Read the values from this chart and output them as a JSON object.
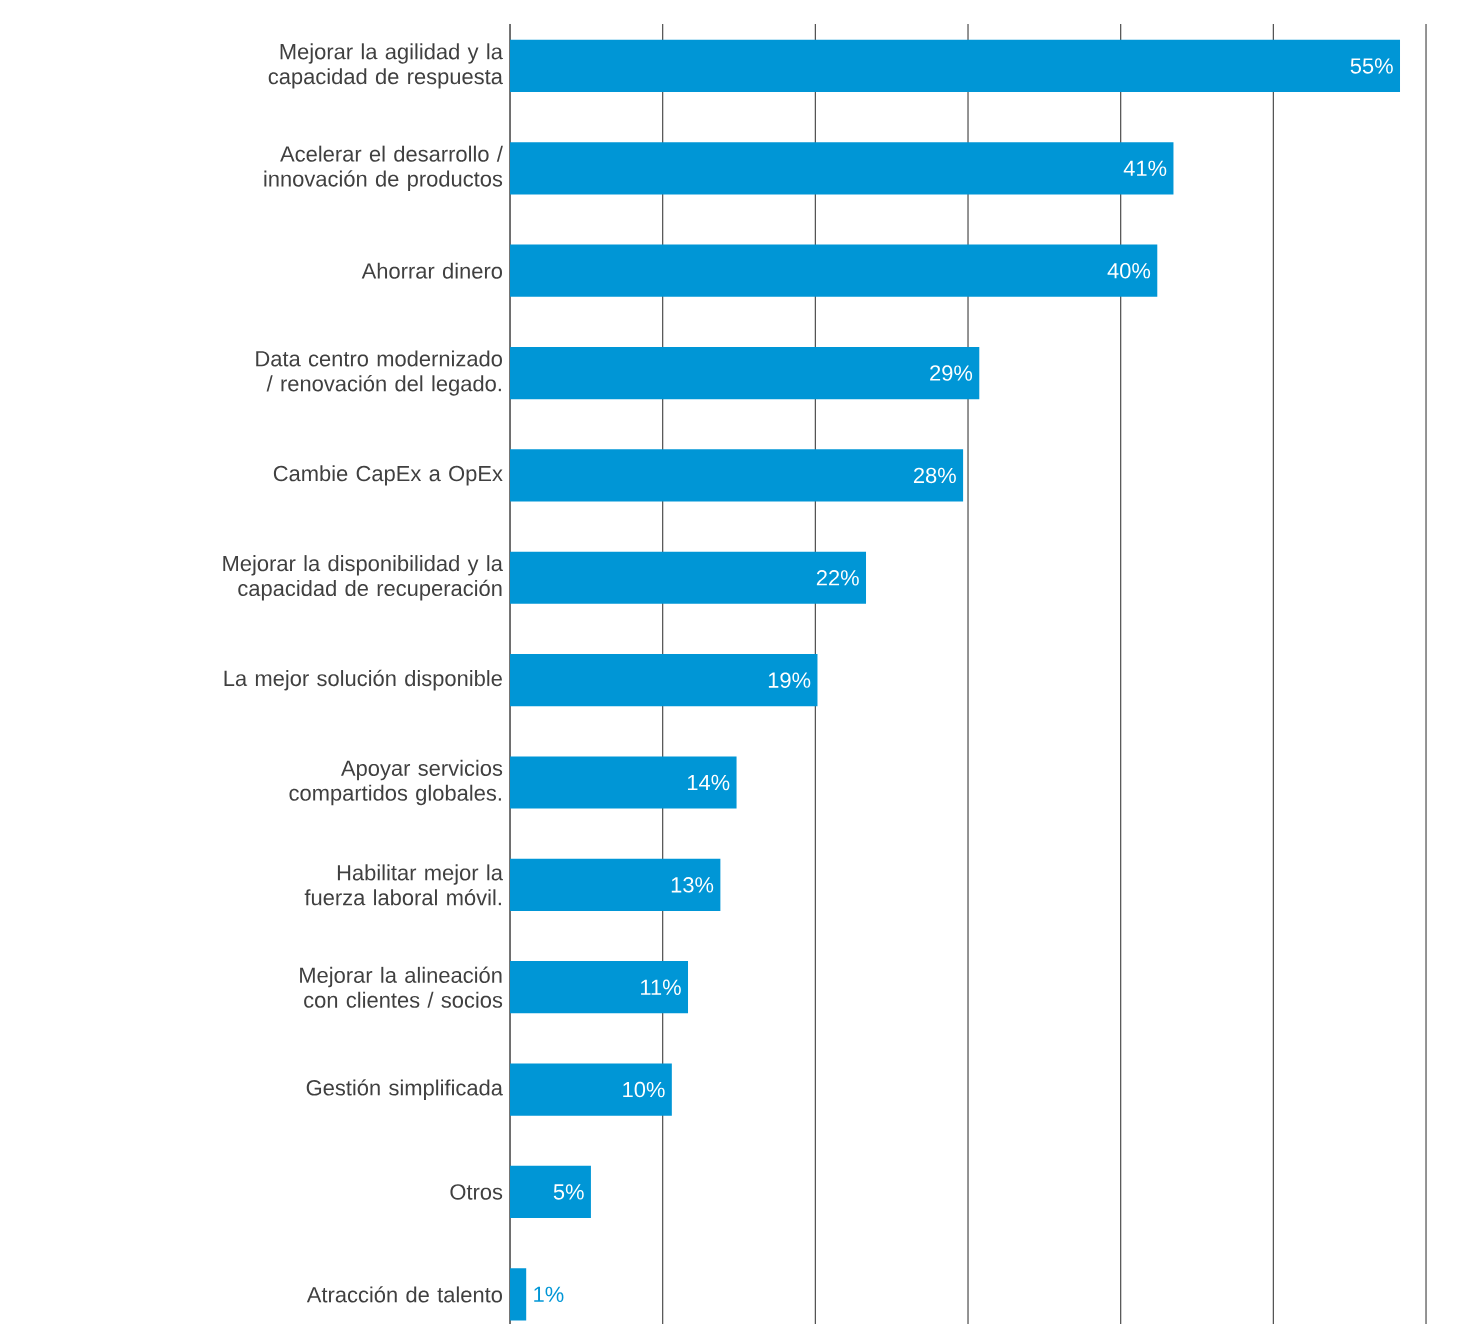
{
  "chart_data": {
    "type": "bar",
    "orientation": "horizontal",
    "categories": [
      "Mejorar la agilidad y la capacidad de respuesta",
      "Acelerar el desarrollo / innovación de productos",
      "Ahorrar dinero",
      "Data centro modernizado / renovación del legado.",
      "Cambie CapEx a OpEx",
      "Mejorar la disponibilidad y la capacidad de recuperación",
      "La mejor solución disponible",
      "Apoyar servicios compartidos globales.",
      "Habilitar mejor la fuerza laboral móvil.",
      "Mejorar la alineación con clientes / socios",
      "Gestión simplificada",
      "Otros",
      "Atracción de talento"
    ],
    "values": [
      55,
      41,
      40,
      29,
      28,
      22,
      19,
      14,
      13,
      11,
      10,
      5,
      1
    ],
    "value_labels": [
      "55%",
      "41%",
      "40%",
      "29%",
      "28%",
      "22%",
      "19%",
      "14%",
      "13%",
      "11%",
      "10%",
      "5%",
      "1%"
    ],
    "color": "#0096d6",
    "grid": "x",
    "tick_labels": "y"
  }
}
